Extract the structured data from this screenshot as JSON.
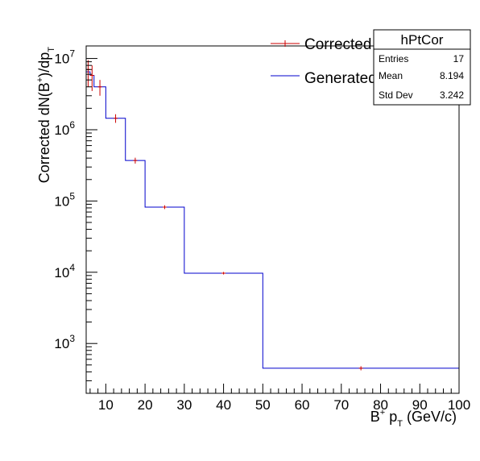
{
  "chart_data": {
    "type": "line",
    "step": true,
    "xlabel_main": "B",
    "xlabel_sup": "+",
    "xlabel_mid": " p",
    "xlabel_sub": "T",
    "xlabel_tail": " (GeV/c)",
    "ylabel_main": "Corrected dN(B",
    "ylabel_sup": "+",
    "ylabel_mid": ")/dp",
    "ylabel_sub": "T",
    "xlim": [
      5,
      100
    ],
    "ylim": [
      200,
      15000000
    ],
    "ylog": true,
    "grid": false,
    "x_ticks": [
      "10",
      "20",
      "30",
      "40",
      "50",
      "60",
      "70",
      "80",
      "90",
      "100"
    ],
    "y_tick_base": "10",
    "y_tick_exponents": [
      "3",
      "4",
      "5",
      "6",
      "7"
    ],
    "legend": {
      "placement": "top-right",
      "entries": [
        {
          "label": "Corrected",
          "color": "#cc0000"
        },
        {
          "label": "Generated",
          "color": "#0000cc"
        }
      ]
    },
    "series": [
      {
        "name": "Generated",
        "color": "#0000cc",
        "bins": [
          {
            "x0": 5,
            "x1": 6,
            "y": 6500000
          },
          {
            "x0": 6,
            "x1": 7,
            "y": 5800000
          },
          {
            "x0": 7,
            "x1": 10,
            "y": 4000000
          },
          {
            "x0": 10,
            "x1": 15,
            "y": 1450000
          },
          {
            "x0": 15,
            "x1": 20,
            "y": 370000
          },
          {
            "x0": 20,
            "x1": 30,
            "y": 82000
          },
          {
            "x0": 30,
            "x1": 50,
            "y": 9700
          },
          {
            "x0": 50,
            "x1": 100,
            "y": 450
          }
        ]
      },
      {
        "name": "Corrected",
        "color": "#cc0000",
        "points": [
          {
            "x": 5.5,
            "y": 7000000,
            "ylo": 4000000,
            "yhi": 9500000
          },
          {
            "x": 6.5,
            "y": 5800000,
            "ylo": 3500000,
            "yhi": 8000000
          },
          {
            "x": 8.5,
            "y": 4000000,
            "ylo": 3000000,
            "yhi": 5000000
          },
          {
            "x": 12.5,
            "y": 1450000,
            "ylo": 1250000,
            "yhi": 1650000
          },
          {
            "x": 17.5,
            "y": 370000,
            "ylo": 335000,
            "yhi": 405000
          },
          {
            "x": 25,
            "y": 82000,
            "ylo": 77000,
            "yhi": 87000
          },
          {
            "x": 40,
            "y": 9700,
            "ylo": 9300,
            "yhi": 10100
          },
          {
            "x": 75,
            "y": 450,
            "ylo": 420,
            "yhi": 480
          }
        ]
      }
    ],
    "stats_box": {
      "title": "hPtCor",
      "rows": [
        {
          "label": "Entries",
          "value": "17"
        },
        {
          "label": "Mean",
          "value": "8.194"
        },
        {
          "label": "Std Dev",
          "value": "3.242"
        }
      ]
    }
  }
}
